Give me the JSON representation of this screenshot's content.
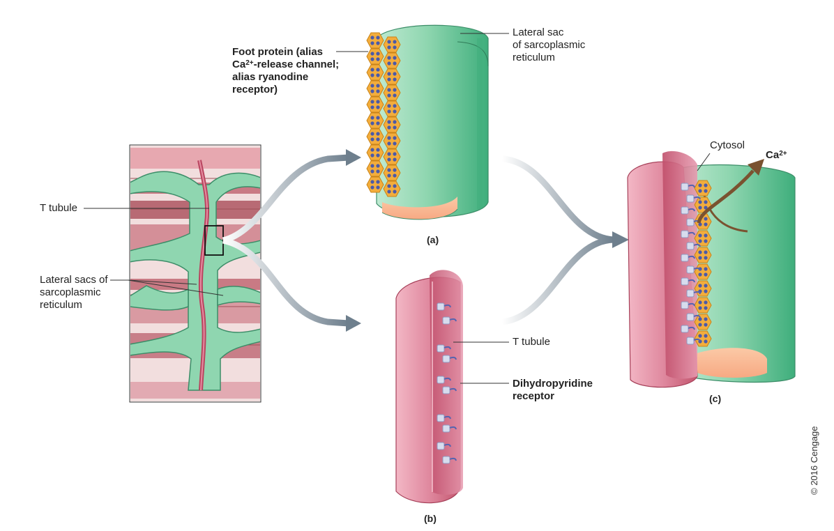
{
  "labels": {
    "foot_protein_l1": "Foot protein (alias",
    "foot_protein_l2a": "Ca",
    "foot_protein_l2sup": "2+",
    "foot_protein_l2b": "-release channel;",
    "foot_protein_l3": "alias ryanodine",
    "foot_protein_l4": "receptor)",
    "lateral_sac_l1": "Lateral sac",
    "lateral_sac_l2": "of sarcoplasmic",
    "lateral_sac_l3": "reticulum",
    "t_tubule_left": "T tubule",
    "lateral_sacs_l1": "Lateral sacs of",
    "lateral_sacs_l2": "sarcoplasmic",
    "lateral_sacs_l3": "reticulum",
    "t_tubule_b": "T tubule",
    "dhp_l1": "Dihydropyridine",
    "dhp_l2": "receptor",
    "cytosol": "Cytosol",
    "ca_main": "Ca",
    "ca_sup": "2+"
  },
  "captions": {
    "a": "(a)",
    "b": "(b)",
    "c": "(c)"
  },
  "copyright": "© 2016 Cengage",
  "colors": {
    "green": "#86d3ae",
    "green_dark": "#4fb487",
    "pink": "#e88ea4",
    "pink_dark": "#c8566f",
    "gold": "#f2a93b",
    "arrow_gray": "#7d8c99",
    "ca_arrow": "#7a5230"
  }
}
